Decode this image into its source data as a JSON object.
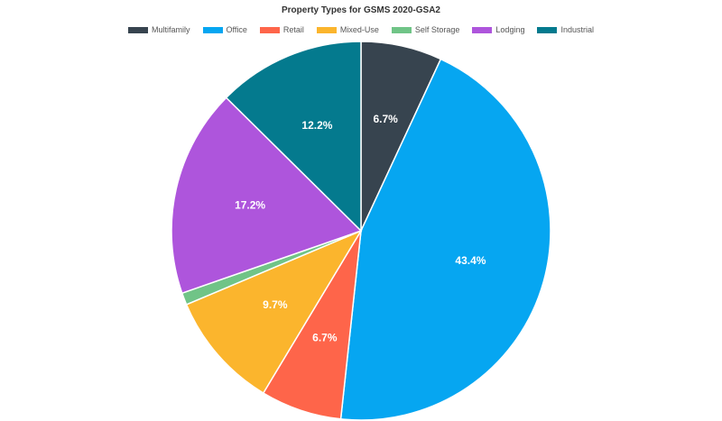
{
  "chart_data": {
    "type": "pie",
    "title": "Property Types for GSMS 2020-GSA2",
    "legend_position": "top",
    "slices": [
      {
        "name": "Multifamily",
        "value": 6.7,
        "label": "6.7%",
        "color": "#37444f"
      },
      {
        "name": "Office",
        "value": 43.4,
        "label": "43.4%",
        "color": "#06a6f1"
      },
      {
        "name": "Retail",
        "value": 6.7,
        "label": "6.7%",
        "color": "#fe654a"
      },
      {
        "name": "Mixed-Use",
        "value": 9.7,
        "label": "9.7%",
        "color": "#fbb52d"
      },
      {
        "name": "Self Storage",
        "value": 1.0,
        "label": "",
        "color": "#70c487"
      },
      {
        "name": "Lodging",
        "value": 17.2,
        "label": "17.2%",
        "color": "#ae55dc"
      },
      {
        "name": "Industrial",
        "value": 12.2,
        "label": "12.2%",
        "color": "#047a8e"
      }
    ]
  }
}
